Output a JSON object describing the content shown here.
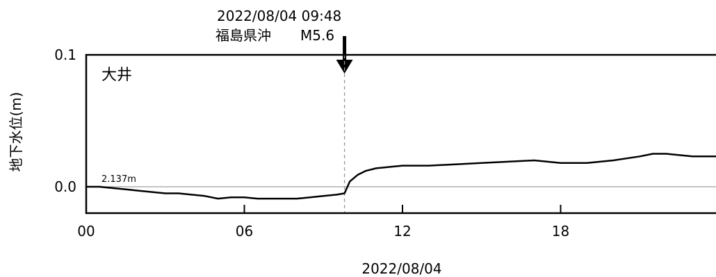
{
  "chart_data": {
    "type": "line",
    "station": "大井",
    "ylabel": "地下水位(m)",
    "xlabel": "2022/08/04",
    "baseline_label": "2.137m",
    "ylim": [
      -0.02,
      0.1
    ],
    "xlim": [
      0,
      24
    ],
    "yticks": [
      {
        "value": 0.1,
        "label": "0.1"
      },
      {
        "value": 0.0,
        "label": "0.0"
      }
    ],
    "xticks": [
      {
        "value": 0,
        "label": "00"
      },
      {
        "value": 6,
        "label": "06"
      },
      {
        "value": 12,
        "label": "12"
      },
      {
        "value": 18,
        "label": "18"
      }
    ],
    "event": {
      "time_label": "2022/08/04 09:48",
      "name": "福島県沖",
      "magnitude": "M5.6",
      "x": 9.8
    },
    "series": [
      {
        "x": [
          0,
          0.5,
          1,
          1.5,
          2,
          2.5,
          3,
          3.5,
          4,
          4.5,
          5,
          5.5,
          6,
          6.5,
          7,
          7.5,
          8,
          8.5,
          9,
          9.5,
          9.8,
          10,
          10.3,
          10.6,
          11,
          11.5,
          12,
          13,
          14,
          15,
          16,
          17,
          18,
          19,
          20,
          21,
          21.5,
          22,
          23,
          24
        ],
        "y": [
          0.0,
          0.0,
          -0.001,
          -0.002,
          -0.003,
          -0.004,
          -0.005,
          -0.005,
          -0.006,
          -0.007,
          -0.009,
          -0.008,
          -0.008,
          -0.009,
          -0.009,
          -0.009,
          -0.009,
          -0.008,
          -0.007,
          -0.006,
          -0.005,
          0.004,
          0.009,
          0.012,
          0.014,
          0.015,
          0.016,
          0.016,
          0.017,
          0.018,
          0.019,
          0.02,
          0.018,
          0.018,
          0.02,
          0.023,
          0.025,
          0.025,
          0.023,
          0.023
        ]
      }
    ]
  }
}
